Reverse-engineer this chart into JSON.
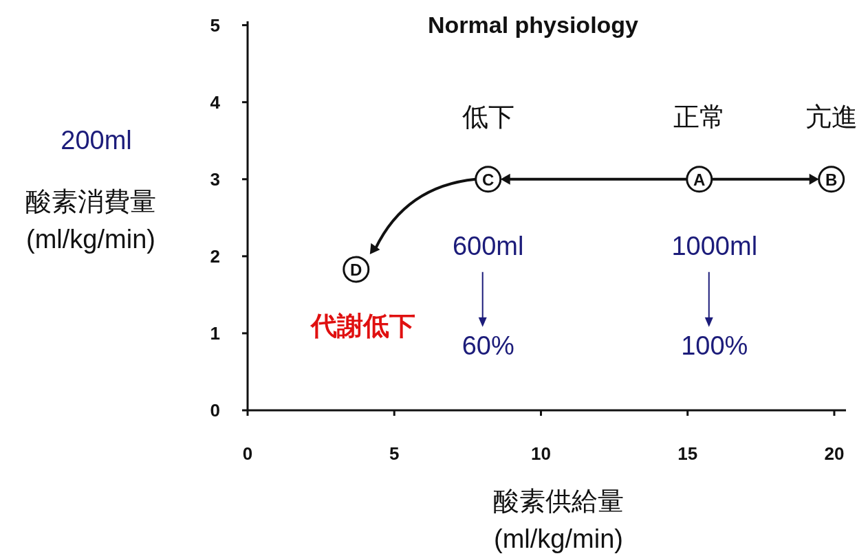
{
  "chart_data": {
    "type": "scatter",
    "title": "Normal physiology",
    "xlabel": "酸素供給量\n(ml/kg/min)",
    "ylabel": "酸素消費量\n(ml/kg/min)",
    "x": [
      3.7,
      8.2,
      15.4,
      19.9
    ],
    "values": [
      1.83,
      3,
      3,
      3
    ],
    "color": "#111111",
    "marker": "circle",
    "xlim": [
      0,
      20.4
    ],
    "xticks": [
      0,
      5,
      10,
      15,
      20
    ],
    "ylim": [
      0,
      5.05
    ],
    "yticks": [
      0,
      1,
      2,
      3,
      4,
      5
    ],
    "grid": false,
    "annotations": [
      "200ml",
      {
        "text": "D",
        "x": 3.7,
        "y": 1.83
      },
      {
        "text": "C",
        "x": 8.2,
        "y": 3
      },
      {
        "text": "A",
        "x": 15.4,
        "y": 3
      },
      {
        "text": "B",
        "x": 19.9,
        "y": 3
      },
      "低下",
      "正常",
      "亢進",
      "600ml",
      "60%",
      "1000ml",
      "100%",
      "代謝低下"
    ]
  }
}
